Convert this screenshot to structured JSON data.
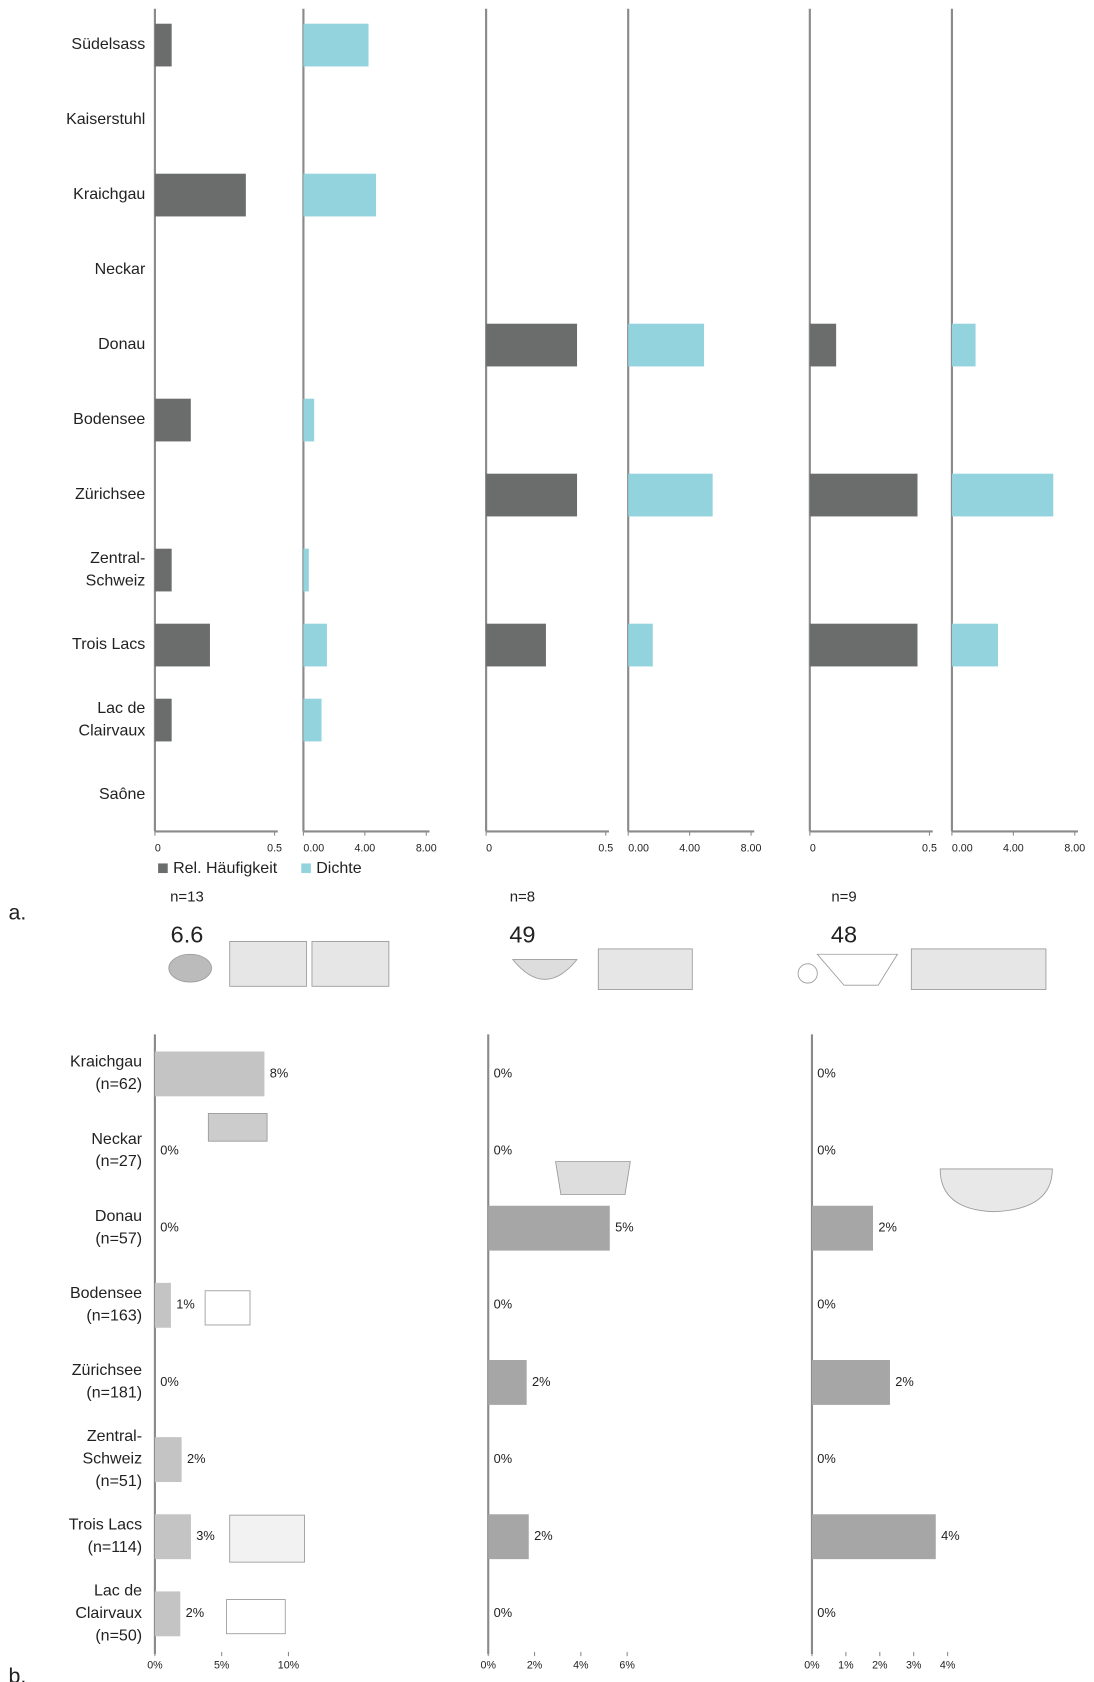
{
  "chart_data": [
    {
      "type": "bar",
      "orientation": "horizontal",
      "label": "a.",
      "categories": [
        "Südelsass",
        "Kaiserstuhl",
        "Kraichgau",
        "Neckar",
        "Donau",
        "Bodensee",
        "Zürichsee",
        "Zentral-\nSchweiz",
        "Trois Lacs",
        "Lac de\nClairvaux",
        "Saône"
      ],
      "series": [
        {
          "name": "Rel. Häufigkeit",
          "color": "#6b6d6d",
          "xlim": [
            0,
            0.5
          ],
          "xticks": [
            0,
            0.5
          ]
        },
        {
          "name": "Dichte",
          "color": "#92d3de",
          "xlim": [
            0,
            8
          ],
          "xticks": [
            {
              "value": 0,
              "label": "0.00"
            },
            {
              "value": 4,
              "label": "4.00"
            },
            {
              "value": 8,
              "label": "8.00"
            }
          ]
        }
      ],
      "groups": [
        {
          "n": "n=13",
          "figure": "6.6",
          "values": [
            [
              0.07,
              null,
              0.38,
              null,
              null,
              0.15,
              null,
              0.07,
              0.23,
              0.07,
              null
            ],
            [
              4.24,
              null,
              4.73,
              null,
              null,
              0.7,
              null,
              0.35,
              1.53,
              1.18,
              null
            ]
          ]
        },
        {
          "n": "n=8",
          "figure": "49",
          "values": [
            [
              null,
              null,
              null,
              null,
              0.38,
              null,
              0.38,
              null,
              0.25,
              null,
              null
            ],
            [
              null,
              null,
              null,
              null,
              4.94,
              null,
              5.5,
              null,
              1.6,
              null,
              null
            ]
          ]
        },
        {
          "n": "n=9",
          "figure": "48",
          "values": [
            [
              null,
              null,
              null,
              null,
              0.11,
              null,
              0.45,
              null,
              0.45,
              null,
              null
            ],
            [
              null,
              null,
              null,
              null,
              1.54,
              null,
              6.6,
              null,
              3.0,
              null,
              null
            ]
          ]
        }
      ]
    },
    {
      "type": "bar",
      "orientation": "horizontal",
      "label": "b.",
      "categories": [
        "Kraichgau\n(n=62)",
        "Neckar\n(n=27)",
        "Donau\n(n=57)",
        "Bodensee\n(n=163)",
        "Zürichsee\n(n=181)",
        "Zentral-\nSchweiz\n(n=51)",
        "Trois Lacs\n(n=114)",
        "Lac de\nClairvaux\n(n=50)"
      ],
      "panels": [
        {
          "color": "#c4c4c4",
          "xlim": [
            0,
            10
          ],
          "xticks": [
            {
              "value": 0,
              "label": "0%"
            },
            {
              "value": 5,
              "label": "5%"
            },
            {
              "value": 10,
              "label": "10%"
            }
          ],
          "values": [
            8.2,
            0,
            0,
            1.2,
            0,
            2.0,
            2.7,
            1.9
          ],
          "value_labels": [
            "8%",
            "0%",
            "0%",
            "1%",
            "0%",
            "2%",
            "3%",
            "2%"
          ]
        },
        {
          "color": "#a6a6a6",
          "xlim": [
            0,
            6
          ],
          "xticks": [
            {
              "value": 0,
              "label": "0%"
            },
            {
              "value": 2,
              "label": "2%"
            },
            {
              "value": 4,
              "label": "4%"
            },
            {
              "value": 6,
              "label": "6%"
            }
          ],
          "values": [
            0,
            0,
            5.25,
            0,
            1.66,
            0,
            1.75,
            0
          ],
          "value_labels": [
            "0%",
            "0%",
            "5%",
            "0%",
            "2%",
            "0%",
            "2%",
            "0%"
          ]
        },
        {
          "color": "#a6a6a6",
          "xlim": [
            0,
            4
          ],
          "xticks": [
            {
              "value": 0,
              "label": "0%"
            },
            {
              "value": 1,
              "label": "1%"
            },
            {
              "value": 2,
              "label": "2%"
            },
            {
              "value": 3,
              "label": "3%"
            },
            {
              "value": 4,
              "label": "4%"
            }
          ],
          "values": [
            0,
            0,
            1.8,
            0,
            2.3,
            0,
            3.65,
            0
          ],
          "value_labels": [
            "0%",
            "0%",
            "2%",
            "0%",
            "2%",
            "0%",
            "4%",
            "0%"
          ]
        }
      ]
    }
  ]
}
